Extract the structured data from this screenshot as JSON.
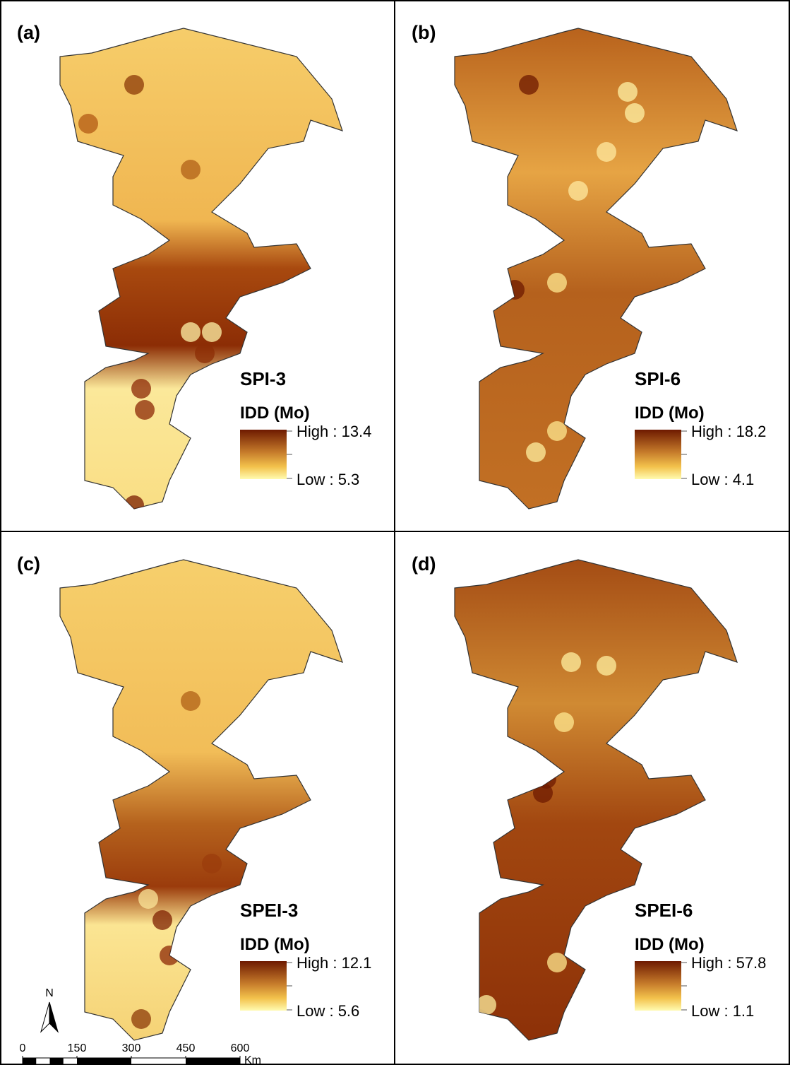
{
  "panels": [
    {
      "label": "(a)",
      "index": "SPI-3",
      "legend_title": "IDD (Mo)",
      "high": "High : 13.4",
      "low": "Low : 5.3"
    },
    {
      "label": "(b)",
      "index": "SPI-6",
      "legend_title": "IDD (Mo)",
      "high": "High : 18.2",
      "low": "Low : 4.1"
    },
    {
      "label": "(c)",
      "index": "SPEI-3",
      "legend_title": "IDD (Mo)",
      "high": "High : 12.1",
      "low": "Low : 5.6"
    },
    {
      "label": "(d)",
      "index": "SPEI-6",
      "legend_title": "IDD (Mo)",
      "high": "High : 57.8",
      "low": "Low : 1.1"
    }
  ],
  "north_arrow": "N",
  "scale_bar": {
    "ticks": [
      0,
      150,
      300,
      450,
      600
    ],
    "unit": "Km"
  }
}
